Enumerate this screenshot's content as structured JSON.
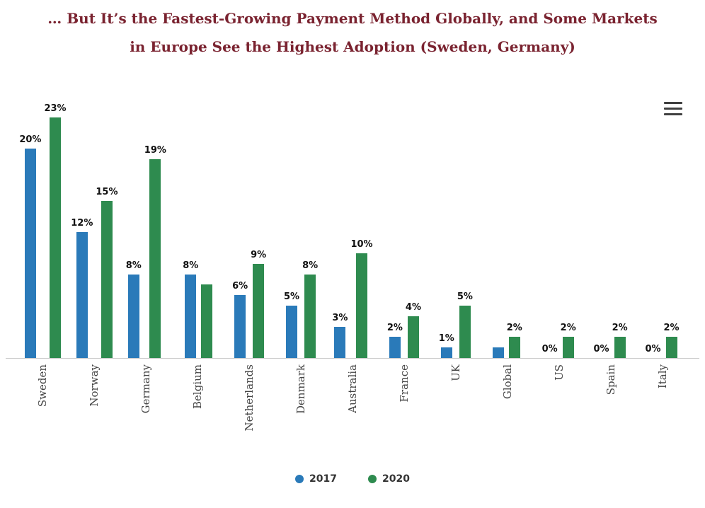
{
  "title": {
    "line1": "… But It’s the Fastest-Growing Payment Method Globally, and Some Markets",
    "line2": "in Europe See the Highest Adoption (Sweden, Germany)",
    "color": "#7a2330"
  },
  "menu_icon": "hamburger-icon",
  "colors": {
    "series_2017": "#2a7ab9",
    "series_2020": "#2e8b4f",
    "axis_line": "#cccccc",
    "data_label": "#111111"
  },
  "legend": [
    {
      "label": "2017",
      "color": "#2a7ab9"
    },
    {
      "label": "2020",
      "color": "#2e8b4f"
    }
  ],
  "chart_data": {
    "type": "bar",
    "title": "… But It’s the Fastest-Growing Payment Method Globally, and Some Markets in Europe See the Highest Adoption (Sweden, Germany)",
    "categories": [
      "Sweden",
      "Norway",
      "Germany",
      "Belgium",
      "Netherlands",
      "Denmark",
      "Australia",
      "France",
      "UK",
      "Global",
      "US",
      "Spain",
      "Italy"
    ],
    "series": [
      {
        "name": "2017",
        "color": "#2a7ab9",
        "values": [
          20,
          12,
          8,
          8,
          6,
          5,
          3,
          2,
          1,
          1,
          0,
          0,
          0
        ],
        "data_labels": [
          "20%",
          "12%",
          "8%",
          "8%",
          "6%",
          "5%",
          "3%",
          "2%",
          "1%",
          "",
          "0%",
          "0%",
          "0%"
        ]
      },
      {
        "name": "2020",
        "color": "#2e8b4f",
        "values": [
          23,
          15,
          19,
          7,
          9,
          8,
          10,
          4,
          5,
          2,
          2,
          2,
          2
        ],
        "data_labels": [
          "23%",
          "15%",
          "19%",
          "",
          "9%",
          "8%",
          "10%",
          "4%",
          "5%",
          "2%",
          "2%",
          "2%",
          "2%"
        ]
      }
    ],
    "y_unit": "%",
    "ylim": [
      0,
      25
    ],
    "grid": false,
    "y_axis_visible": false,
    "x_labels_rotation": -90,
    "legend_position": "bottom"
  }
}
